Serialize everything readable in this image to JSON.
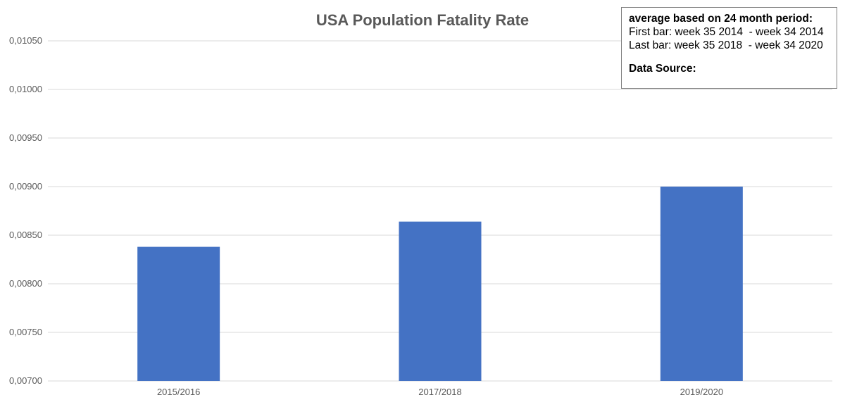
{
  "chart_data": {
    "type": "bar",
    "title": "USA Population Fatality Rate",
    "categories": [
      "2015/2016",
      "2017/2018",
      "2019/2020"
    ],
    "values": [
      0.00838,
      0.00864,
      0.009
    ],
    "ylim": [
      0.007,
      0.0105
    ],
    "yticks": [
      "0,00700",
      "0,00750",
      "0,00800",
      "0,00850",
      "0,00900",
      "0,00950",
      "0,01000",
      "0,01050"
    ],
    "xlabel": "",
    "ylabel": "",
    "grid": true,
    "colors": {
      "bar": "#4472c4",
      "grid": "#d9d9d9",
      "title": "#595959",
      "axis_text": "#595959"
    }
  },
  "note": {
    "heading": "average based on 24 month period:",
    "line1": "First bar: week 35 2014  - week 34 2014",
    "line2": "Last bar: week 35 2018  - week 34 2020",
    "source_label": "Data Source:"
  }
}
